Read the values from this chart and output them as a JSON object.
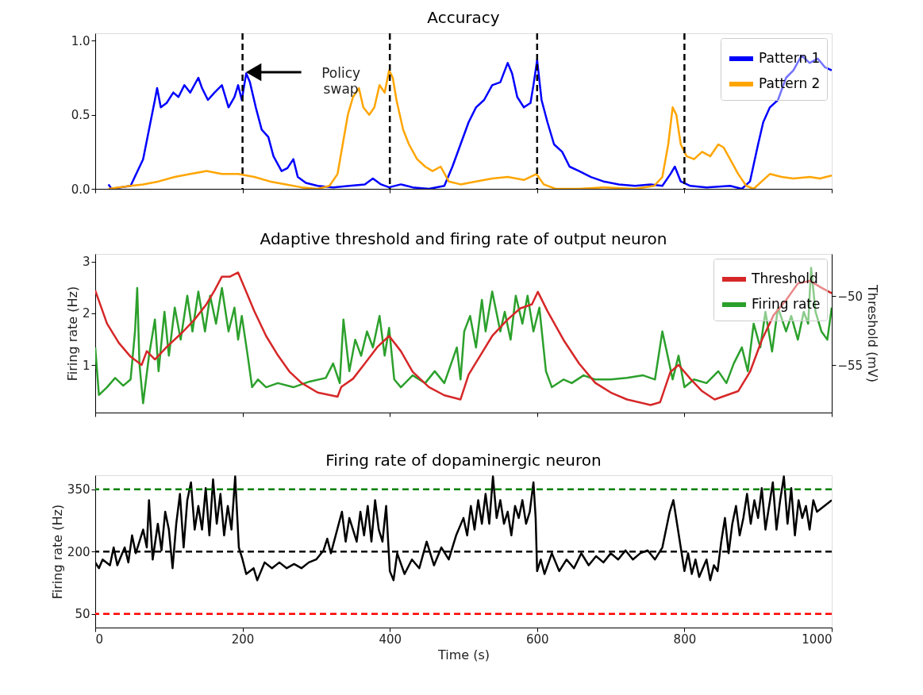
{
  "chart_data": [
    {
      "type": "line",
      "title": "Accuracy",
      "xlim": [
        0,
        1000
      ],
      "xticks": [
        0,
        200,
        400,
        600,
        800,
        1000
      ],
      "ylim": [
        0,
        1.05
      ],
      "yticks": [
        {
          "value": 0,
          "label": "0.0"
        },
        0.5,
        {
          "value": 1,
          "label": "1.0"
        }
      ],
      "tick_labels": "y",
      "grid": false,
      "legend": "top right",
      "marker": "none",
      "series": [
        {
          "name": "Pattern 1",
          "color": "#0000ff",
          "x": [
            18,
            22,
            48,
            65,
            75,
            81,
            84,
            89,
            97,
            106,
            113,
            121,
            129,
            140,
            145,
            153,
            162,
            172,
            181,
            189,
            194,
            199,
            205,
            210,
            218,
            226,
            235,
            242,
            253,
            261,
            269,
            275,
            286,
            302,
            323,
            345,
            366,
            377,
            388,
            399,
            415,
            431,
            453,
            474,
            485,
            496,
            507,
            517,
            528,
            539,
            550,
            560,
            566,
            573,
            582,
            591,
            595,
            600,
            606,
            614,
            623,
            634,
            644,
            657,
            673,
            690,
            711,
            733,
            754,
            770,
            781,
            787,
            795,
            808,
            830,
            862,
            878,
            889,
            900,
            907,
            916,
            927,
            938,
            948,
            959,
            970,
            981,
            991,
            1000
          ],
          "values": [
            0.03,
            0.0,
            0.02,
            0.2,
            0.45,
            0.6,
            0.68,
            0.55,
            0.58,
            0.65,
            0.62,
            0.7,
            0.65,
            0.75,
            0.68,
            0.6,
            0.65,
            0.7,
            0.55,
            0.62,
            0.7,
            0.6,
            0.78,
            0.72,
            0.55,
            0.4,
            0.35,
            0.22,
            0.12,
            0.14,
            0.2,
            0.08,
            0.04,
            0.02,
            0.01,
            0.02,
            0.03,
            0.07,
            0.03,
            0.01,
            0.03,
            0.01,
            0.0,
            0.02,
            0.15,
            0.3,
            0.45,
            0.55,
            0.6,
            0.7,
            0.72,
            0.85,
            0.78,
            0.62,
            0.55,
            0.58,
            0.7,
            0.87,
            0.6,
            0.45,
            0.3,
            0.25,
            0.15,
            0.12,
            0.08,
            0.05,
            0.03,
            0.02,
            0.03,
            0.02,
            0.1,
            0.15,
            0.05,
            0.02,
            0.01,
            0.02,
            0.0,
            0.05,
            0.3,
            0.45,
            0.55,
            0.6,
            0.75,
            0.8,
            0.9,
            0.85,
            0.88,
            0.82,
            0.8
          ]
        },
        {
          "name": "Pattern 2",
          "color": "#ffa500",
          "x": [
            18,
            48,
            65,
            86,
            108,
            129,
            151,
            172,
            194,
            216,
            237,
            259,
            280,
            302,
            318,
            329,
            336,
            343,
            350,
            358,
            364,
            372,
            379,
            386,
            393,
            399,
            404,
            409,
            418,
            426,
            437,
            448,
            458,
            469,
            480,
            496,
            517,
            539,
            560,
            582,
            599,
            609,
            625,
            657,
            690,
            733,
            759,
            770,
            778,
            784,
            789,
            795,
            803,
            813,
            824,
            835,
            846,
            853,
            862,
            873,
            884,
            894,
            905,
            916,
            932,
            948,
            970,
            984,
            1000
          ],
          "values": [
            0.0,
            0.02,
            0.03,
            0.05,
            0.08,
            0.1,
            0.12,
            0.1,
            0.1,
            0.08,
            0.05,
            0.03,
            0.01,
            0.0,
            0.02,
            0.1,
            0.3,
            0.5,
            0.62,
            0.68,
            0.55,
            0.5,
            0.55,
            0.7,
            0.65,
            0.8,
            0.75,
            0.6,
            0.4,
            0.3,
            0.2,
            0.15,
            0.12,
            0.15,
            0.05,
            0.03,
            0.05,
            0.07,
            0.08,
            0.06,
            0.1,
            0.03,
            0.0,
            0.0,
            0.01,
            0.0,
            0.02,
            0.08,
            0.3,
            0.55,
            0.5,
            0.3,
            0.22,
            0.2,
            0.25,
            0.22,
            0.3,
            0.28,
            0.2,
            0.1,
            0.02,
            0.0,
            0.05,
            0.1,
            0.08,
            0.07,
            0.08,
            0.07,
            0.09
          ]
        }
      ],
      "ref_lines": [
        {
          "axis": "x",
          "value": 200,
          "color": "#000000",
          "line_style": "dashed"
        },
        {
          "axis": "x",
          "value": 400,
          "color": "#000000",
          "line_style": "dashed"
        },
        {
          "axis": "x",
          "value": 600,
          "color": "#000000",
          "line_style": "dashed"
        },
        {
          "axis": "x",
          "value": 800,
          "color": "#000000",
          "line_style": "dashed"
        }
      ],
      "annotations": [
        "Policy\nswap"
      ]
    },
    {
      "type": "line",
      "title": "Adaptive threshold and firing rate of output neuron",
      "ylabel": "Firing rate (Hz)",
      "y2label": "Threshold (mV)",
      "xlim": [
        0,
        1000
      ],
      "xticks": [
        0,
        200,
        400,
        600,
        800,
        1000
      ],
      "ylim": [
        0.08,
        3.15
      ],
      "yticks": [
        1,
        2,
        3
      ],
      "y2lim": [
        -58.45,
        -46.95
      ],
      "y2ticks": [
        -55,
        -50
      ],
      "tick_labels": "y",
      "grid": false,
      "legend": "top right",
      "marker": "none",
      "series": [
        {
          "name": "Threshold",
          "color": "#d62728",
          "axis": "y2",
          "x": [
            0,
            16,
            32,
            48,
            63,
            70,
            81,
            97,
            119,
            135,
            151,
            162,
            172,
            183,
            194,
            205,
            216,
            232,
            248,
            264,
            280,
            302,
            329,
            334,
            350,
            366,
            383,
            399,
            415,
            431,
            453,
            474,
            496,
            507,
            523,
            539,
            560,
            577,
            593,
            601,
            614,
            636,
            657,
            679,
            700,
            722,
            754,
            767,
            781,
            792,
            808,
            824,
            841,
            857,
            873,
            889,
            905,
            921,
            938,
            954,
            970,
            986,
            1000
          ],
          "values": [
            -49.6,
            -52.0,
            -53.4,
            -54.4,
            -55.0,
            -54.0,
            -54.6,
            -53.7,
            -52.6,
            -51.7,
            -50.6,
            -49.6,
            -48.6,
            -48.6,
            -48.3,
            -49.7,
            -51.1,
            -52.9,
            -54.3,
            -55.5,
            -56.3,
            -57.0,
            -57.3,
            -56.6,
            -56.0,
            -54.9,
            -53.7,
            -52.9,
            -54.0,
            -55.5,
            -56.6,
            -57.2,
            -57.5,
            -55.7,
            -54.3,
            -52.9,
            -51.7,
            -50.9,
            -50.6,
            -49.7,
            -51.1,
            -53.2,
            -54.9,
            -56.3,
            -57.0,
            -57.5,
            -57.9,
            -57.7,
            -55.5,
            -55.0,
            -56.0,
            -56.9,
            -57.5,
            -57.2,
            -56.9,
            -55.5,
            -53.2,
            -51.4,
            -50.3,
            -49.1,
            -48.9,
            -49.4,
            -49.8
          ]
        },
        {
          "name": "Firing rate",
          "color": "#2ca02c",
          "x": [
            0,
            5,
            16,
            27,
            38,
            48,
            54,
            57,
            60,
            65,
            73,
            81,
            86,
            94,
            100,
            108,
            116,
            125,
            132,
            140,
            149,
            156,
            164,
            172,
            181,
            189,
            194,
            199,
            207,
            213,
            221,
            232,
            248,
            269,
            291,
            313,
            323,
            332,
            337,
            345,
            353,
            361,
            369,
            377,
            386,
            393,
            399,
            406,
            415,
            431,
            448,
            461,
            474,
            491,
            496,
            501,
            509,
            517,
            525,
            530,
            539,
            550,
            556,
            564,
            571,
            580,
            587,
            595,
            603,
            612,
            620,
            636,
            647,
            663,
            679,
            700,
            722,
            744,
            760,
            770,
            776,
            784,
            792,
            800,
            813,
            830,
            846,
            857,
            867,
            878,
            886,
            894,
            903,
            910,
            919,
            927,
            938,
            945,
            954,
            962,
            968,
            972,
            978,
            986,
            994,
            1000
          ],
          "values": [
            1.34,
            0.42,
            0.57,
            0.75,
            0.6,
            0.72,
            1.65,
            2.49,
            1.03,
            0.26,
            1.18,
            1.88,
            0.88,
            2.03,
            1.18,
            2.11,
            1.49,
            2.34,
            1.65,
            2.42,
            1.65,
            2.34,
            1.8,
            2.49,
            1.65,
            2.11,
            1.49,
            1.95,
            1.18,
            0.57,
            0.72,
            0.57,
            0.65,
            0.57,
            0.68,
            0.75,
            1.03,
            0.65,
            1.88,
            0.88,
            1.49,
            1.18,
            1.65,
            1.34,
            1.95,
            1.18,
            1.72,
            0.72,
            0.57,
            0.8,
            0.65,
            0.88,
            0.65,
            1.34,
            0.72,
            1.65,
            1.95,
            1.34,
            2.26,
            1.65,
            2.42,
            1.65,
            2.03,
            1.49,
            2.34,
            1.8,
            2.34,
            1.65,
            2.11,
            0.88,
            0.57,
            0.72,
            0.65,
            0.8,
            0.72,
            0.72,
            0.75,
            0.8,
            0.72,
            1.65,
            1.26,
            0.72,
            1.18,
            0.57,
            0.72,
            0.65,
            0.88,
            0.65,
            1.03,
            1.34,
            0.88,
            1.8,
            1.34,
            2.03,
            1.26,
            2.11,
            1.65,
            1.95,
            1.49,
            2.03,
            1.8,
            2.88,
            2.03,
            1.65,
            1.49,
            2.11
          ]
        }
      ]
    },
    {
      "type": "line",
      "title": "Firing rate of dopaminergic neuron",
      "xlabel": "Time (s)",
      "ylabel": "Firing rate (Hz)",
      "xlim": [
        0,
        1000
      ],
      "xticks": [
        0,
        200,
        400,
        600,
        800,
        {
          "value": 1000,
          "label": "1000"
        }
      ],
      "ylim": [
        17,
        384
      ],
      "yticks": [
        50,
        200,
        350
      ],
      "grid": false,
      "marker": "none",
      "series": [
        {
          "color": "#000000",
          "x": [
            0,
            5,
            10,
            20,
            25,
            30,
            40,
            45,
            50,
            55,
            60,
            65,
            70,
            73,
            78,
            85,
            90,
            95,
            100,
            105,
            110,
            115,
            120,
            125,
            130,
            135,
            140,
            145,
            150,
            155,
            160,
            165,
            170,
            175,
            180,
            185,
            190,
            195,
            200,
            205,
            215,
            220,
            230,
            240,
            250,
            260,
            270,
            280,
            290,
            300,
            310,
            315,
            320,
            335,
            340,
            345,
            350,
            355,
            360,
            365,
            370,
            375,
            380,
            385,
            390,
            395,
            400,
            405,
            410,
            420,
            430,
            440,
            450,
            460,
            470,
            480,
            490,
            500,
            505,
            510,
            515,
            520,
            525,
            530,
            535,
            540,
            545,
            550,
            555,
            560,
            565,
            570,
            575,
            580,
            585,
            590,
            595,
            598,
            600,
            605,
            610,
            620,
            630,
            640,
            650,
            660,
            670,
            680,
            690,
            700,
            710,
            720,
            730,
            740,
            750,
            760,
            770,
            780,
            785,
            790,
            795,
            800,
            805,
            810,
            815,
            820,
            830,
            835,
            840,
            845,
            850,
            855,
            860,
            865,
            870,
            875,
            880,
            885,
            890,
            895,
            900,
            905,
            910,
            915,
            920,
            925,
            930,
            935,
            940,
            945,
            950,
            955,
            960,
            965,
            970,
            975,
            980,
            990,
            1000
          ],
          "values": [
            174,
            160,
            181,
            167,
            210,
            167,
            210,
            174,
            239,
            196,
            224,
            253,
            210,
            324,
            181,
            267,
            203,
            296,
            253,
            160,
            267,
            339,
            210,
            324,
            367,
            253,
            310,
            253,
            353,
            239,
            374,
            267,
            339,
            239,
            310,
            253,
            381,
            210,
            181,
            146,
            160,
            131,
            174,
            160,
            174,
            160,
            170,
            160,
            174,
            181,
            203,
            231,
            196,
            296,
            224,
            281,
            253,
            224,
            296,
            239,
            310,
            224,
            324,
            253,
            224,
            310,
            153,
            131,
            196,
            146,
            181,
            160,
            224,
            167,
            210,
            181,
            239,
            281,
            239,
            310,
            253,
            324,
            267,
            339,
            267,
            381,
            281,
            324,
            267,
            296,
            239,
            310,
            281,
            324,
            267,
            296,
            367,
            281,
            153,
            181,
            146,
            196,
            153,
            181,
            160,
            196,
            167,
            189,
            174,
            196,
            181,
            203,
            181,
            196,
            203,
            181,
            210,
            296,
            324,
            267,
            210,
            153,
            196,
            146,
            181,
            139,
            181,
            131,
            167,
            153,
            224,
            281,
            196,
            267,
            310,
            239,
            281,
            339,
            267,
            324,
            281,
            353,
            253,
            310,
            367,
            253,
            324,
            381,
            267,
            353,
            239,
            324,
            281,
            310,
            253,
            324,
            296,
            310,
            324
          ]
        }
      ],
      "ref_lines": [
        {
          "axis": "y",
          "value": 350,
          "color": "#008000",
          "line_style": "dashed"
        },
        {
          "axis": "y",
          "value": 200,
          "color": "#000000",
          "line_style": "dashed"
        },
        {
          "axis": "y",
          "value": 50,
          "color": "#ff0000",
          "line_style": "dashed"
        }
      ]
    }
  ]
}
